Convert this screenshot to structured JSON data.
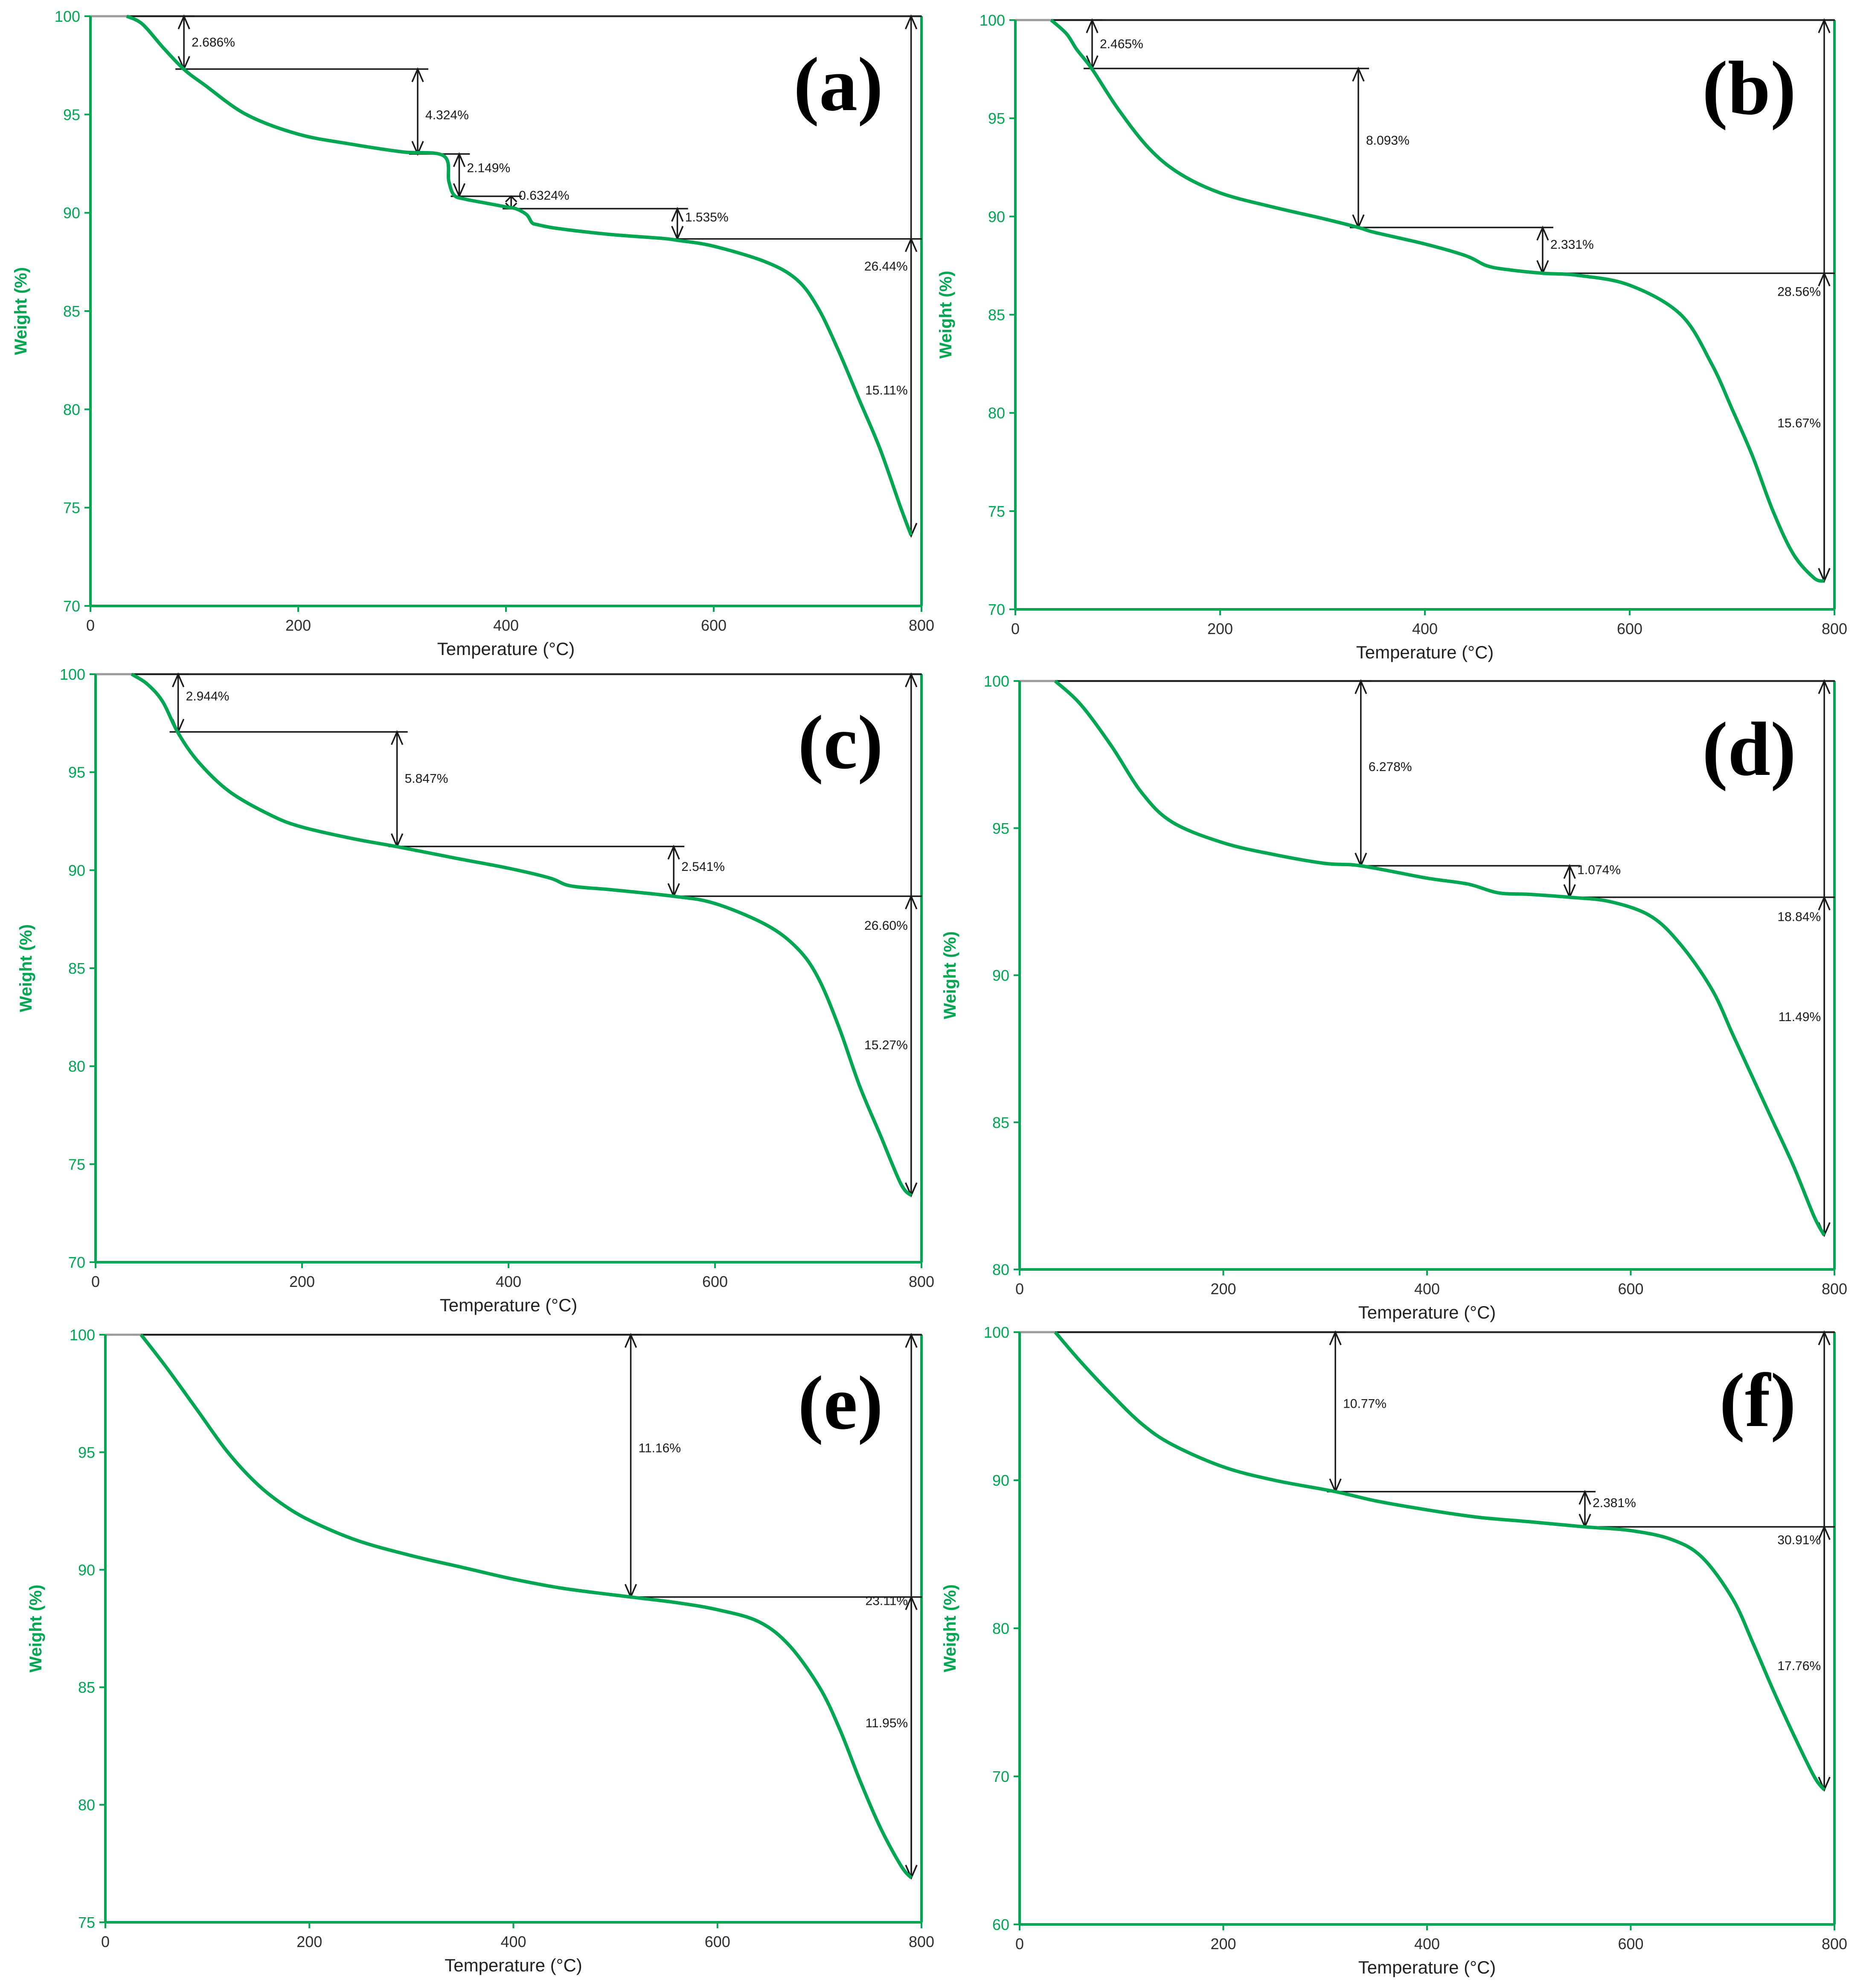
{
  "figure": {
    "description_free": true
  },
  "colors": {
    "curve": "#00a651",
    "axis": "#00a651",
    "axis_title": "#00a651",
    "tick_labels": "#2f2f2f",
    "annotation": "#1a1a1a",
    "panel_label": "#000000",
    "frame": "#000000"
  },
  "chart_data": [
    {
      "panel": "(a)",
      "type": "line",
      "xlabel": "Temperature (°C)",
      "ylabel": "Weight (%)",
      "xlim": [
        0,
        800
      ],
      "ylim": [
        70,
        100
      ],
      "xticks": [
        "0",
        "200",
        "400",
        "600",
        "800"
      ],
      "yticks": [
        "70",
        "75",
        "80",
        "85",
        "90",
        "95",
        "100"
      ],
      "series": [
        {
          "x": [
            35,
            50,
            70,
            90,
            110,
            150,
            200,
            250,
            300,
            340,
            345,
            350,
            360,
            380,
            400,
            410,
            420,
            425,
            430,
            450,
            500,
            550,
            565,
            600,
            650,
            680,
            700,
            720,
            740,
            760,
            780,
            790
          ],
          "y": [
            100,
            99.6,
            98.4,
            97.3,
            96.5,
            95.0,
            94.0,
            93.5,
            93.1,
            92.9,
            91.6,
            90.9,
            90.7,
            90.5,
            90.3,
            90.2,
            89.9,
            89.5,
            89.4,
            89.2,
            88.9,
            88.7,
            88.6,
            88.3,
            87.5,
            86.6,
            85.2,
            83.0,
            80.5,
            78.0,
            75.0,
            73.6
          ]
        }
      ],
      "annotations": [
        {
          "text": "2.686%",
          "x": 90,
          "y_top": 100,
          "y_bottom": 97.31,
          "label_y": 98.7
        },
        {
          "text": "4.324%",
          "x": 315,
          "y_top": 97.31,
          "y_bottom": 92.99,
          "label_y": 95.0
        },
        {
          "text": "2.149%",
          "x": 355,
          "y_top": 92.99,
          "y_bottom": 90.84,
          "label_y": 92.3
        },
        {
          "text": "0.6324%",
          "x": 405,
          "y_top": 90.84,
          "y_bottom": 90.21,
          "label_y": 90.9
        },
        {
          "text": "1.535%",
          "x": 565,
          "y_top": 90.21,
          "y_bottom": 88.67,
          "label_y": 89.8
        },
        {
          "text": "26.44%",
          "x": 790,
          "y_top": 100,
          "y_bottom": 73.56,
          "label_y": 87.3
        },
        {
          "text": "15.11%",
          "x": 790,
          "y_top": 88.67,
          "y_bottom": 73.56,
          "label_y": 81.0
        }
      ]
    },
    {
      "panel": "(b)",
      "type": "line",
      "xlabel": "Temperature (°C)",
      "ylabel": "Weight (%)",
      "xlim": [
        0,
        800
      ],
      "ylim": [
        70,
        100
      ],
      "xticks": [
        "0",
        "200",
        "400",
        "600",
        "800"
      ],
      "yticks": [
        "70",
        "75",
        "80",
        "85",
        "90",
        "95",
        "100"
      ],
      "series": [
        {
          "x": [
            35,
            50,
            60,
            75,
            100,
            130,
            160,
            200,
            250,
            300,
            335,
            350,
            400,
            440,
            460,
            480,
            515,
            550,
            600,
            650,
            680,
            700,
            720,
            740,
            760,
            780,
            790
          ],
          "y": [
            100,
            99.3,
            98.5,
            97.5,
            95.5,
            93.5,
            92.2,
            91.2,
            90.5,
            89.9,
            89.44,
            89.2,
            88.6,
            88.0,
            87.5,
            87.3,
            87.11,
            87.0,
            86.5,
            85.0,
            82.5,
            80.2,
            77.8,
            75.0,
            72.8,
            71.6,
            71.44
          ]
        }
      ],
      "annotations": [
        {
          "text": "2.465%",
          "x": 75,
          "y_top": 100,
          "y_bottom": 97.535,
          "label_y": 98.8
        },
        {
          "text": "8.093%",
          "x": 335,
          "y_top": 97.535,
          "y_bottom": 89.44,
          "label_y": 93.9
        },
        {
          "text": "2.331%",
          "x": 515,
          "y_top": 89.44,
          "y_bottom": 87.11,
          "label_y": 88.6
        },
        {
          "text": "28.56%",
          "x": 790,
          "y_top": 100,
          "y_bottom": 71.44,
          "label_y": 86.2
        },
        {
          "text": "15.67%",
          "x": 790,
          "y_top": 87.11,
          "y_bottom": 71.44,
          "label_y": 79.5
        }
      ]
    },
    {
      "panel": "(c)",
      "type": "line",
      "xlabel": "Temperature (°C)",
      "ylabel": "Weight (%)",
      "xlim": [
        0,
        800
      ],
      "ylim": [
        70,
        100
      ],
      "xticks": [
        "0",
        "200",
        "400",
        "600",
        "800"
      ],
      "yticks": [
        "70",
        "75",
        "80",
        "85",
        "90",
        "95",
        "100"
      ],
      "series": [
        {
          "x": [
            35,
            50,
            65,
            80,
            100,
            130,
            170,
            200,
            250,
            292,
            350,
            400,
            440,
            460,
            500,
            560,
            600,
            650,
            680,
            700,
            720,
            740,
            760,
            780,
            790
          ],
          "y": [
            100,
            99.5,
            98.6,
            97.0,
            95.5,
            94.0,
            92.8,
            92.2,
            91.6,
            91.2,
            90.6,
            90.1,
            89.6,
            89.2,
            89.0,
            88.67,
            88.3,
            87.2,
            86.0,
            84.5,
            82.0,
            79.0,
            76.5,
            74.0,
            73.4
          ]
        }
      ],
      "annotations": [
        {
          "text": "2.944%",
          "x": 80,
          "y_top": 100,
          "y_bottom": 97.056,
          "label_y": 98.9
        },
        {
          "text": "5.847%",
          "x": 292,
          "y_top": 97.056,
          "y_bottom": 91.21,
          "label_y": 94.7
        },
        {
          "text": "2.541%",
          "x": 560,
          "y_top": 91.21,
          "y_bottom": 88.67,
          "label_y": 90.2
        },
        {
          "text": "26.60%",
          "x": 790,
          "y_top": 100,
          "y_bottom": 73.4,
          "label_y": 87.2
        },
        {
          "text": "15.27%",
          "x": 790,
          "y_top": 88.67,
          "y_bottom": 73.4,
          "label_y": 81.1
        }
      ]
    },
    {
      "panel": "(d)",
      "type": "line",
      "xlabel": "Temperature (°C)",
      "ylabel": "Weight (%)",
      "xlim": [
        0,
        800
      ],
      "ylim": [
        80,
        100
      ],
      "xticks": [
        "0",
        "200",
        "400",
        "600",
        "800"
      ],
      "yticks": [
        "80",
        "85",
        "90",
        "95",
        "100"
      ],
      "series": [
        {
          "x": [
            35,
            60,
            90,
            120,
            150,
            200,
            250,
            300,
            335,
            400,
            440,
            470,
            500,
            540,
            580,
            620,
            650,
            680,
            700,
            720,
            740,
            760,
            780,
            790
          ],
          "y": [
            100,
            99.2,
            97.8,
            96.2,
            95.2,
            94.5,
            94.1,
            93.8,
            93.72,
            93.3,
            93.1,
            92.8,
            92.75,
            92.65,
            92.5,
            92.0,
            91.0,
            89.5,
            88.0,
            86.5,
            85.0,
            83.5,
            81.8,
            81.16
          ]
        }
      ],
      "annotations": [
        {
          "text": "6.278%",
          "x": 335,
          "y_top": 100,
          "y_bottom": 93.72,
          "label_y": 97.1
        },
        {
          "text": "1.074%",
          "x": 540,
          "y_top": 93.72,
          "y_bottom": 92.65,
          "label_y": 93.6
        },
        {
          "text": "18.84%",
          "x": 790,
          "y_top": 100,
          "y_bottom": 81.16,
          "label_y": 92.0
        },
        {
          "text": "11.49%",
          "x": 790,
          "y_top": 92.65,
          "y_bottom": 81.16,
          "label_y": 88.6
        }
      ]
    },
    {
      "panel": "(e)",
      "type": "line",
      "xlabel": "Temperature (°C)",
      "ylabel": "Weight (%)",
      "xlim": [
        0,
        800
      ],
      "ylim": [
        75,
        100
      ],
      "xticks": [
        "0",
        "200",
        "400",
        "600",
        "800"
      ],
      "yticks": [
        "75",
        "80",
        "85",
        "90",
        "95",
        "100"
      ],
      "series": [
        {
          "x": [
            35,
            60,
            90,
            120,
            150,
            180,
            210,
            250,
            300,
            350,
            400,
            450,
            515,
            560,
            600,
            640,
            670,
            700,
            720,
            740,
            760,
            780,
            790
          ],
          "y": [
            100,
            98.6,
            96.8,
            95.0,
            93.6,
            92.6,
            91.9,
            91.2,
            90.6,
            90.1,
            89.6,
            89.2,
            88.84,
            88.6,
            88.3,
            87.8,
            86.8,
            85.0,
            83.2,
            81.0,
            79.0,
            77.4,
            76.89
          ]
        }
      ],
      "annotations": [
        {
          "text": "11.16%",
          "x": 515,
          "y_top": 100,
          "y_bottom": 88.84,
          "label_y": 95.2
        },
        {
          "text": "23.11%",
          "x": 790,
          "y_top": 100,
          "y_bottom": 76.89,
          "label_y": 88.7
        },
        {
          "text": "11.95%",
          "x": 790,
          "y_top": 88.84,
          "y_bottom": 76.89,
          "label_y": 83.5
        }
      ]
    },
    {
      "panel": "(f)",
      "type": "line",
      "xlabel": "Temperature (°C)",
      "ylabel": "Weight (%)",
      "xlim": [
        0,
        800
      ],
      "ylim": [
        60,
        100
      ],
      "xticks": [
        "0",
        "200",
        "400",
        "600",
        "800"
      ],
      "yticks": [
        "60",
        "70",
        "80",
        "90",
        "100"
      ],
      "series": [
        {
          "x": [
            35,
            60,
            90,
            120,
            150,
            200,
            250,
            310,
            350,
            400,
            450,
            500,
            555,
            600,
            640,
            670,
            700,
            720,
            740,
            760,
            780,
            790
          ],
          "y": [
            100,
            98.0,
            95.8,
            93.8,
            92.4,
            90.9,
            90.0,
            89.23,
            88.6,
            88.0,
            87.5,
            87.2,
            86.85,
            86.6,
            86.0,
            84.8,
            82.0,
            79.0,
            75.8,
            72.8,
            70.0,
            69.09
          ]
        }
      ],
      "annotations": [
        {
          "text": "10.77%",
          "x": 310,
          "y_top": 100,
          "y_bottom": 89.23,
          "label_y": 95.2
        },
        {
          "text": "2.381%",
          "x": 555,
          "y_top": 89.23,
          "y_bottom": 86.85,
          "label_y": 88.5
        },
        {
          "text": "30.91%",
          "x": 790,
          "y_top": 100,
          "y_bottom": 69.09,
          "label_y": 86.0
        },
        {
          "text": "17.76%",
          "x": 790,
          "y_top": 86.85,
          "y_bottom": 69.09,
          "label_y": 77.5
        }
      ]
    }
  ]
}
